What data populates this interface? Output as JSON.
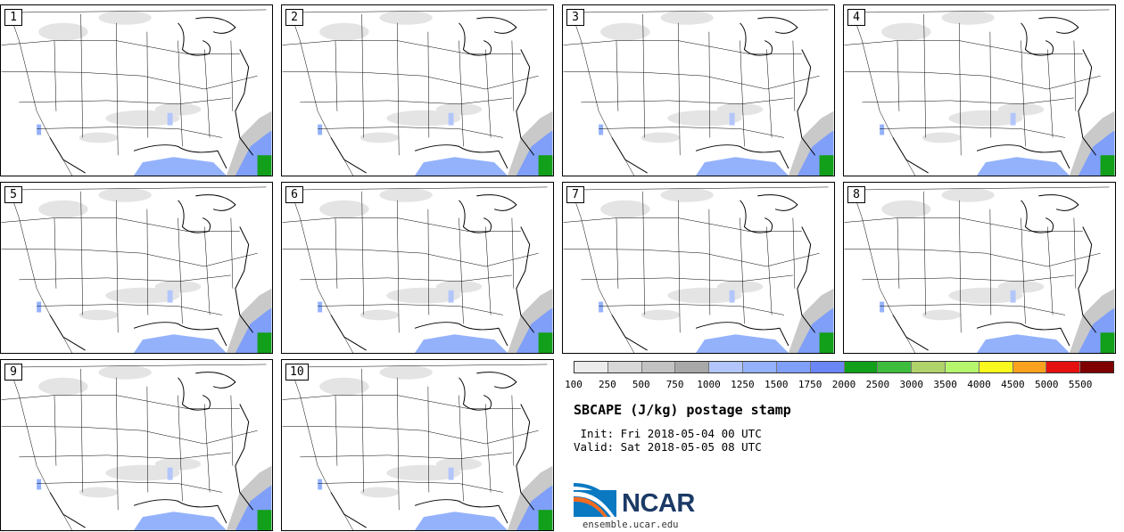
{
  "panels": [
    "1",
    "2",
    "3",
    "4",
    "5",
    "6",
    "7",
    "8",
    "9",
    "10"
  ],
  "colorbar": {
    "colors": [
      "#ececec",
      "#d7d7d7",
      "#c2c2c2",
      "#a8a8a8",
      "#b2c6fb",
      "#94b2fc",
      "#7f9ff9",
      "#6b86f6",
      "#129f1a",
      "#3dbd3b",
      "#b0d26a",
      "#b6f66d",
      "#f9f91d",
      "#fca21e",
      "#e51010",
      "#7f0000"
    ],
    "labels": [
      "100",
      "250",
      "500",
      "750",
      "1000",
      "1250",
      "1500",
      "1750",
      "2000",
      "2500",
      "3000",
      "3500",
      "4000",
      "4500",
      "5000",
      "5500"
    ]
  },
  "title": "SBCAPE (J/kg) postage stamp",
  "init_text": " Init: Fri 2018-05-04 00 UTC",
  "valid_text": "Valid: Sat 2018-05-05 08 UTC",
  "logo_text": "NCAR",
  "url_text": "ensemble.ucar.edu"
}
